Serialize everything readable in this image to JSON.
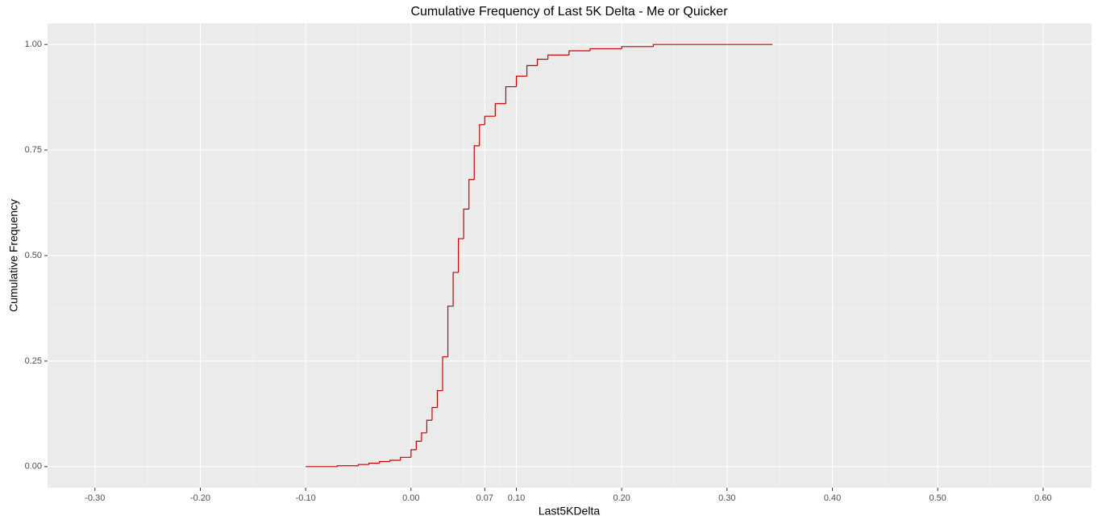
{
  "chart_data": {
    "type": "line",
    "step": true,
    "title": "Cumulative Frequency of Last 5K Delta - Me or Quicker",
    "x_label": "Last5KDelta",
    "y_label": "Cumulative Frequency",
    "color": "#cc0000",
    "grid": true,
    "xlim": [
      -0.345,
      0.646
    ],
    "ylim": [
      -0.05,
      1.05
    ],
    "xticks": [
      {
        "value": -0.3,
        "label": "-0.30"
      },
      {
        "value": -0.2,
        "label": "-0.20"
      },
      {
        "value": -0.1,
        "label": "-0.10"
      },
      {
        "value": 0,
        "label": "0.00"
      },
      0.07,
      {
        "value": 0.1,
        "label": "0.10"
      },
      {
        "value": 0.2,
        "label": "0.20"
      },
      {
        "value": 0.3,
        "label": "0.30"
      },
      {
        "value": 0.4,
        "label": "0.40"
      },
      {
        "value": 0.5,
        "label": "0.50"
      },
      {
        "value": 0.6,
        "label": "0.60"
      }
    ],
    "x_minor_ticks": [
      -0.25,
      -0.15,
      -0.05,
      0.05,
      0.085,
      0.15,
      0.25,
      0.35,
      0.45,
      0.55
    ],
    "yticks": [
      {
        "value": 0,
        "label": "0.00"
      },
      {
        "value": 0.25,
        "label": "0.25"
      },
      {
        "value": 0.5,
        "label": "0.50"
      },
      {
        "value": 0.75,
        "label": "0.75"
      },
      {
        "value": 1,
        "label": "1.00"
      }
    ],
    "y_minor_ticks": [
      0.125,
      0.375,
      0.625,
      0.875
    ],
    "x": [
      -0.1,
      -0.07,
      -0.05,
      -0.04,
      -0.03,
      -0.02,
      -0.01,
      0.0,
      0.005,
      0.01,
      0.015,
      0.02,
      0.025,
      0.03,
      0.035,
      0.04,
      0.045,
      0.05,
      0.055,
      0.06,
      0.065,
      0.07,
      0.08,
      0.09,
      0.1,
      0.11,
      0.12,
      0.13,
      0.15,
      0.17,
      0.2,
      0.23,
      0.343
    ],
    "values": [
      0,
      0.002,
      0.005,
      0.008,
      0.012,
      0.015,
      0.022,
      0.04,
      0.06,
      0.08,
      0.11,
      0.14,
      0.18,
      0.26,
      0.38,
      0.46,
      0.54,
      0.61,
      0.68,
      0.76,
      0.81,
      0.83,
      0.86,
      0.9,
      0.925,
      0.95,
      0.965,
      0.975,
      0.985,
      0.99,
      0.995,
      1.0,
      1.0
    ]
  }
}
